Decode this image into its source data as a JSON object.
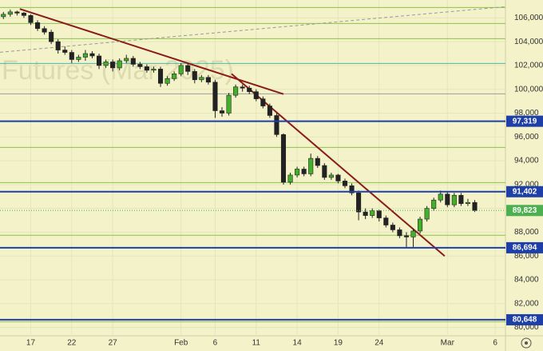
{
  "chart_data": {
    "type": "candlestick",
    "watermark": "Futures (Mar 2025)",
    "categories": [
      null,
      null,
      null,
      null,
      "17",
      null,
      null,
      null,
      null,
      null,
      "22",
      null,
      null,
      null,
      null,
      null,
      "27",
      null,
      null,
      null,
      null,
      null,
      null,
      null,
      null,
      null,
      "Feb",
      null,
      null,
      null,
      null,
      "6",
      null,
      null,
      null,
      null,
      null,
      "11",
      null,
      null,
      null,
      null,
      null,
      "14",
      null,
      null,
      null,
      null,
      null,
      "19",
      null,
      null,
      null,
      null,
      null,
      "24",
      null,
      null,
      null,
      null,
      null,
      null,
      null,
      null,
      null,
      "Mar",
      null,
      null,
      null,
      null,
      null,
      null,
      "6",
      null
    ],
    "open": [
      106100,
      106300,
      106500,
      106400,
      106200,
      105600,
      105100,
      104800,
      104000,
      103300,
      103100,
      102500,
      102700,
      103000,
      102800,
      102000,
      102300,
      101800,
      102400,
      102600,
      102100,
      101900,
      101600,
      101700,
      100500,
      100900,
      101300,
      102000,
      101500,
      100800,
      101000,
      100600,
      98200,
      98000,
      99500,
      100200,
      100100,
      99800,
      99200,
      98600,
      97800,
      96200,
      92200,
      92800,
      93300,
      92900,
      94200,
      93600,
      92600,
      92800,
      92300,
      91900,
      91300,
      89700,
      89400,
      89800,
      89200,
      88600,
      88200,
      87700,
      87600,
      88100,
      89100,
      90000,
      90700,
      91200,
      90300,
      91100,
      90400,
      90500,
      null,
      null,
      null,
      null
    ],
    "high": [
      106500,
      106700,
      106600,
      106500,
      106300,
      105800,
      105300,
      105000,
      104200,
      103600,
      103300,
      102900,
      103300,
      103200,
      103000,
      102500,
      102500,
      102600,
      102900,
      102800,
      102300,
      102100,
      101900,
      101900,
      101100,
      101500,
      102200,
      102200,
      101700,
      101200,
      101200,
      100800,
      98500,
      99700,
      100400,
      100400,
      100300,
      100000,
      99400,
      98800,
      98000,
      96300,
      93000,
      93500,
      93500,
      94600,
      94400,
      93800,
      93000,
      92900,
      92500,
      92100,
      91500,
      90000,
      90000,
      89900,
      89400,
      88800,
      88400,
      88000,
      88300,
      89300,
      90200,
      90900,
      91500,
      91400,
      91300,
      91300,
      90800,
      90700,
      null,
      null,
      null,
      null
    ],
    "low": [
      105900,
      106100,
      106200,
      106000,
      105400,
      104900,
      104600,
      103800,
      103000,
      102900,
      102200,
      102300,
      102400,
      102600,
      101700,
      101800,
      101500,
      101600,
      102200,
      101900,
      101700,
      101400,
      101400,
      100200,
      100300,
      100700,
      101100,
      101200,
      100500,
      100600,
      100400,
      97600,
      97700,
      97800,
      99300,
      99800,
      99600,
      99000,
      98400,
      97600,
      96000,
      92000,
      92000,
      92600,
      92700,
      92700,
      93400,
      92400,
      92400,
      92100,
      91700,
      91100,
      89000,
      89100,
      89200,
      88900,
      88400,
      88000,
      87500,
      86700,
      86700,
      87900,
      88900,
      89800,
      90500,
      90100,
      90100,
      90200,
      90200,
      89700,
      null,
      null,
      null,
      null
    ],
    "close": [
      106300,
      106500,
      106400,
      106200,
      105600,
      105100,
      104800,
      104000,
      103300,
      103100,
      102500,
      102700,
      103000,
      102800,
      102000,
      102300,
      101800,
      102400,
      102600,
      102100,
      101900,
      101600,
      101700,
      100500,
      100900,
      101300,
      102000,
      101500,
      100800,
      101000,
      100600,
      98200,
      98000,
      99500,
      100200,
      100100,
      99800,
      99200,
      98600,
      97800,
      96200,
      92200,
      92800,
      93300,
      92900,
      94200,
      93600,
      92600,
      92800,
      92300,
      91900,
      91300,
      89700,
      89400,
      89800,
      89200,
      88600,
      88200,
      87700,
      87600,
      88100,
      89100,
      90000,
      90700,
      91200,
      90300,
      91100,
      90400,
      90500,
      89823,
      null,
      null,
      null,
      null
    ],
    "up_color": "#43b02a",
    "down_color": "#222222",
    "ylim": [
      79300,
      107500
    ],
    "yticks": [
      {
        "value": 80000,
        "label": "80,000"
      },
      {
        "value": 82000,
        "label": "82,000"
      },
      {
        "value": 84000,
        "label": "84,000"
      },
      {
        "value": 86000,
        "label": "86,000"
      },
      {
        "value": 88000,
        "label": "88,000"
      },
      {
        "value": 90000,
        "label": "90,000"
      },
      {
        "value": 92000,
        "label": "92,000"
      },
      {
        "value": 94000,
        "label": "94,000"
      },
      {
        "value": 96000,
        "label": "96,000"
      },
      {
        "value": 98000,
        "label": "98,000"
      },
      {
        "value": 100000,
        "label": "100,000"
      },
      {
        "value": 102000,
        "label": "102,000"
      },
      {
        "value": 104000,
        "label": "104,000"
      },
      {
        "value": 106000,
        "label": "106,000"
      }
    ],
    "lines": [
      {
        "value": 106870,
        "color": "#8bc34a"
      },
      {
        "value": 105530,
        "color": "#8bc34a"
      },
      {
        "value": 104250,
        "color": "#8bc34a"
      },
      {
        "value": 102170,
        "color": "#4db6ac"
      },
      {
        "value": 99620,
        "color": "#9e9e9e"
      },
      {
        "value": 95120,
        "color": "#8bc34a"
      },
      {
        "value": 92170,
        "color": "#8bc34a"
      },
      {
        "value": 87740,
        "color": "#8bc34a"
      },
      {
        "value": 80480,
        "color": "#8bc34a"
      }
    ],
    "levels": [
      {
        "value": 97319,
        "label": "97,319",
        "color": "#1e3fa8"
      },
      {
        "value": 91402,
        "label": "91,402",
        "color": "#1e3fa8"
      },
      {
        "value": 86694,
        "label": "86,694",
        "color": "#1e3fa8"
      },
      {
        "value": 80648,
        "label": "80,648",
        "color": "#1e3fa8"
      }
    ],
    "last_price": {
      "value": 89823,
      "label": "89,823",
      "color": "#4caf50"
    },
    "trendlines": [
      {
        "from": [
          2.4,
          106750
        ],
        "to": [
          41,
          99600
        ],
        "color": "#8b1a1a",
        "dashed": false
      },
      {
        "from": [
          33.4,
          101300
        ],
        "to": [
          64.6,
          86000
        ],
        "color": "#8b1a1a",
        "dashed": false
      },
      {
        "from": [
          -0.5,
          103110
        ],
        "to": [
          73.5,
          106940
        ],
        "color": "#999999",
        "dashed": true
      }
    ]
  }
}
